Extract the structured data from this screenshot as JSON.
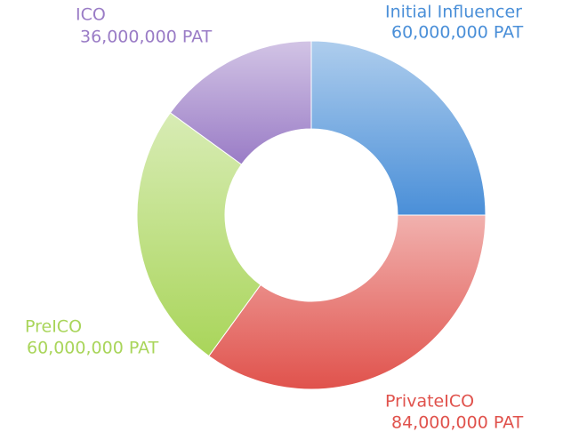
{
  "chart_data": {
    "type": "donut",
    "categories": [
      "Initial Influencer",
      "PrivateICO",
      "PreICO",
      "ICO"
    ],
    "values": [
      60000000,
      84000000,
      60000000,
      36000000
    ],
    "value_labels": [
      "60,000,000 PAT",
      "84,000,000 PAT",
      "60,000,000 PAT",
      "36,000,000 PAT"
    ],
    "colors": [
      "#4a8fd8",
      "#e0524c",
      "#a9d55a",
      "#9a7cc6"
    ]
  }
}
